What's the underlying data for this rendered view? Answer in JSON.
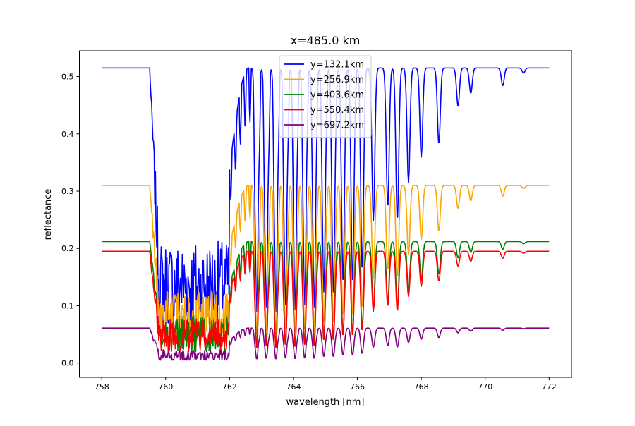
{
  "chart_data": {
    "type": "line",
    "title": "x=485.0 km",
    "xlabel": "wavelength [nm]",
    "ylabel": "reflectance",
    "xlim": [
      757.3,
      772.7
    ],
    "ylim": [
      -0.025,
      0.545
    ],
    "xticks": [
      758,
      760,
      762,
      764,
      766,
      768,
      770,
      772
    ],
    "xtick_labels": [
      "758",
      "760",
      "762",
      "764",
      "766",
      "768",
      "770",
      "772"
    ],
    "yticks": [
      0.0,
      0.1,
      0.2,
      0.3,
      0.4,
      0.5
    ],
    "ytick_labels": [
      "0.0",
      "0.1",
      "0.2",
      "0.3",
      "0.4",
      "0.5"
    ],
    "grid": false,
    "legend_position": "top-center",
    "series": [
      {
        "name": "y=132.1km",
        "color": "#0000ff",
        "continuum": 0.515
      },
      {
        "name": "y=256.9km",
        "color": "#ffa500",
        "continuum": 0.31
      },
      {
        "name": "y=403.6km",
        "color": "#008000",
        "continuum": 0.212
      },
      {
        "name": "y=550.4km",
        "color": "#ff0000",
        "continuum": 0.195
      },
      {
        "name": "y=697.2km",
        "color": "#800080",
        "continuum": 0.061
      }
    ],
    "band_edge_nm": 759.5,
    "band_floor": [
      0.07,
      0.04,
      0.02,
      0.02,
      0.005
    ],
    "absorption_lines": [
      {
        "x": 762.85,
        "depth": 0.98
      },
      {
        "x": 763.15,
        "depth": 0.96
      },
      {
        "x": 763.45,
        "depth": 0.98
      },
      {
        "x": 763.75,
        "depth": 0.95
      },
      {
        "x": 764.05,
        "depth": 0.97
      },
      {
        "x": 764.35,
        "depth": 0.95
      },
      {
        "x": 764.65,
        "depth": 0.96
      },
      {
        "x": 764.95,
        "depth": 0.9
      },
      {
        "x": 765.25,
        "depth": 0.9
      },
      {
        "x": 765.55,
        "depth": 0.85
      },
      {
        "x": 765.85,
        "depth": 0.85
      },
      {
        "x": 766.15,
        "depth": 0.8
      },
      {
        "x": 766.5,
        "depth": 0.6
      },
      {
        "x": 766.95,
        "depth": 0.55
      },
      {
        "x": 767.25,
        "depth": 0.6
      },
      {
        "x": 767.6,
        "depth": 0.45
      },
      {
        "x": 768.0,
        "depth": 0.35
      },
      {
        "x": 768.55,
        "depth": 0.3
      },
      {
        "x": 769.15,
        "depth": 0.15
      },
      {
        "x": 769.55,
        "depth": 0.1
      },
      {
        "x": 770.55,
        "depth": 0.07
      },
      {
        "x": 771.2,
        "depth": 0.02
      }
    ]
  }
}
